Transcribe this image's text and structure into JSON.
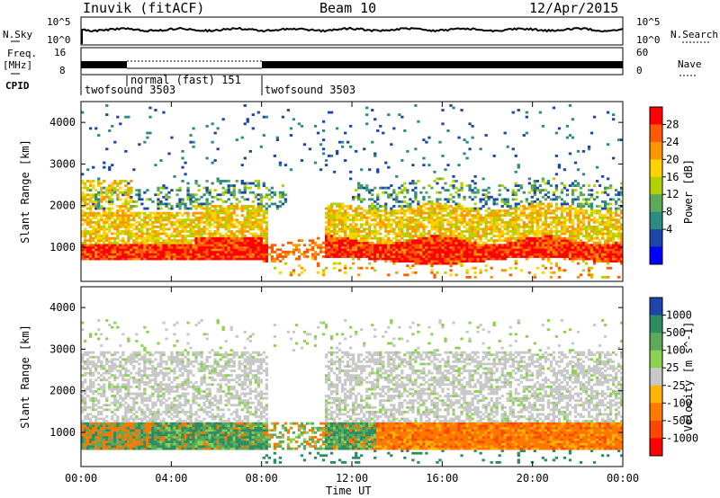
{
  "header": {
    "station": "Inuvik (fitACF)",
    "beam": "Beam 10",
    "date": "12/Apr/2015"
  },
  "top_panels": {
    "nsky_label": "N.Sky",
    "nsky_ticks": [
      "10^5",
      "10^0"
    ],
    "nsearch_label": "N.Search",
    "nsearch_ticks": [
      "10^5",
      "10^0"
    ],
    "freq_label": "Freq.",
    "freq_unit": "[MHz]",
    "freq_ticks": [
      "16",
      "8"
    ],
    "nave_label": "Nave",
    "nave_ticks": [
      "60",
      "0"
    ],
    "cpid_label": "CPID",
    "cpid_segments": [
      {
        "label": "twofsound 3503",
        "start_hour": 0,
        "end_hour": 2
      },
      {
        "label": "normal (fast) 151",
        "start_hour": 2,
        "end_hour": 8
      },
      {
        "label": "twofsound 3503",
        "start_hour": 8,
        "end_hour": 24
      }
    ]
  },
  "chart_data": [
    {
      "type": "heatmap",
      "name": "power",
      "ylabel": "Slant Range [km]",
      "xlabel": "",
      "x_ticks": [
        "00:00",
        "04:00",
        "08:00",
        "12:00",
        "16:00",
        "20:00",
        "00:00"
      ],
      "x_range_hours": [
        0,
        24
      ],
      "y_ticks": [
        1000,
        2000,
        3000,
        4000
      ],
      "y_range": [
        180,
        4500
      ],
      "colorbar": {
        "label": "Power [dB]",
        "ticks": [
          "28",
          "24",
          "20",
          "16",
          "12",
          "8",
          "4"
        ],
        "colors": [
          "#ff0000",
          "#ff5a00",
          "#ff9600",
          "#ffd200",
          "#b4d200",
          "#5aaa5a",
          "#2d8c82",
          "#1e46aa",
          "#0000ff"
        ]
      },
      "bands": [
        {
          "center_km": 900,
          "width_km": 350,
          "level": "strong",
          "start_hour": 0,
          "end_hour": 24
        },
        {
          "center_km": 1500,
          "width_km": 500,
          "level": "medium",
          "start_hour": 0,
          "end_hour": 24
        },
        {
          "center_km": 2050,
          "width_km": 400,
          "level": "weak",
          "start_hour": 0,
          "end_hour": 24
        },
        {
          "center_km": 2600,
          "width_km": 500,
          "level": "faint",
          "start_hour": 0,
          "end_hour": 24
        }
      ]
    },
    {
      "type": "heatmap",
      "name": "velocity",
      "ylabel": "Slant Range [km]",
      "xlabel": "Time UT",
      "x_ticks": [
        "00:00",
        "04:00",
        "08:00",
        "12:00",
        "16:00",
        "20:00",
        "00:00"
      ],
      "x_range_hours": [
        0,
        24
      ],
      "y_ticks": [
        1000,
        2000,
        3000,
        4000
      ],
      "y_range": [
        180,
        4500
      ],
      "colorbar": {
        "label": "Velocity [m s^-1]",
        "ticks": [
          "1000",
          "500",
          "100",
          "25",
          "-25",
          "-100",
          "-500",
          "-1000"
        ],
        "colors": [
          "#1e46aa",
          "#2d8c64",
          "#5aaa5a",
          "#8cd250",
          "#c8c8c8",
          "#ffb400",
          "#ff7800",
          "#ff4600",
          "#ff0000"
        ]
      },
      "bands": [
        {
          "center_km": 800,
          "width_km": 400,
          "level": "mixed",
          "start_hour": 0,
          "end_hour": 24
        },
        {
          "center_km": 1900,
          "width_km": 600,
          "level": "ground",
          "start_hour": 0,
          "end_hour": 24
        },
        {
          "center_km": 2500,
          "width_km": 400,
          "level": "ground",
          "start_hour": 0,
          "end_hour": 24
        }
      ]
    }
  ]
}
